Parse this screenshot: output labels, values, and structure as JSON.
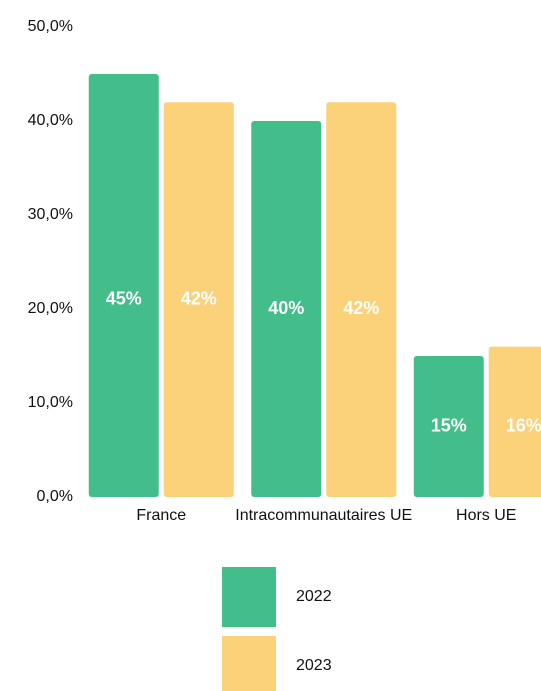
{
  "chart_data": {
    "type": "bar",
    "categories": [
      "France",
      "Intracommunautaires UE",
      "Hors UE"
    ],
    "series": [
      {
        "name": "2022",
        "color": "#43bd8a",
        "values": [
          45,
          40,
          15
        ],
        "value_labels": [
          "45%",
          "40%",
          "15%"
        ]
      },
      {
        "name": "2023",
        "color": "#fbd27a",
        "values": [
          42,
          42,
          16
        ],
        "value_labels": [
          "42%",
          "42%",
          "16%"
        ]
      }
    ],
    "ylim": [
      0,
      50
    ],
    "yticks": [
      {
        "value": 0,
        "label": "0,0%"
      },
      {
        "value": 10,
        "label": "10,0%"
      },
      {
        "value": 20,
        "label": "20,0%"
      },
      {
        "value": 30,
        "label": "30,0%"
      },
      {
        "value": 40,
        "label": "40,0%"
      },
      {
        "value": 50,
        "label": "50,0%"
      }
    ],
    "grid": false
  }
}
